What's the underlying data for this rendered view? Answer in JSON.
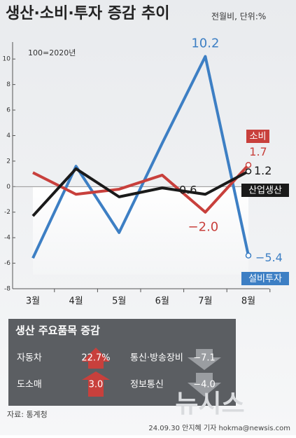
{
  "chart_data": {
    "type": "line",
    "title": "생산·소비·투자 증감 추이",
    "subtitle": "전월비, 단위:%",
    "annotation": "100=2020년",
    "categories": [
      "3월",
      "4월",
      "5월",
      "6월",
      "7월",
      "8월"
    ],
    "series": [
      {
        "name": "소비",
        "color": "#c8403c",
        "values": [
          1.1,
          -0.6,
          -0.2,
          0.9,
          -2.0,
          1.7
        ],
        "value_labels": [
          null,
          null,
          null,
          null,
          "−2.0",
          "1.7"
        ]
      },
      {
        "name": "산업생산",
        "color": "#1a1a1a",
        "values": [
          -2.3,
          1.4,
          -0.8,
          -0.1,
          -0.6,
          1.2
        ],
        "value_labels": [
          null,
          null,
          null,
          null,
          "−0.6",
          "1.2"
        ]
      },
      {
        "name": "설비투자",
        "color": "#3d7fc4",
        "values": [
          -5.6,
          1.6,
          -3.6,
          3.4,
          10.2,
          -5.4
        ],
        "value_labels": [
          null,
          null,
          null,
          null,
          "10.2",
          "−5.4"
        ]
      }
    ],
    "ylim": [
      -8,
      11
    ],
    "yticks": [
      -8,
      -6,
      -4,
      -2,
      0,
      2,
      4,
      6,
      8,
      10
    ]
  },
  "panel": {
    "title": "생산 주요품목 증감",
    "items": [
      {
        "label": "자동차",
        "value": "22.7%"
      },
      {
        "label": "통신·방송장비",
        "value": "−7.1"
      },
      {
        "label": "도소매",
        "value": "3.0"
      },
      {
        "label": "정보통신",
        "value": "−4.0"
      }
    ]
  },
  "source": "자료: 통계청",
  "credit": "24.09.30 안지혜 기자 hokma@newsis.com",
  "watermark": "뉴시스"
}
